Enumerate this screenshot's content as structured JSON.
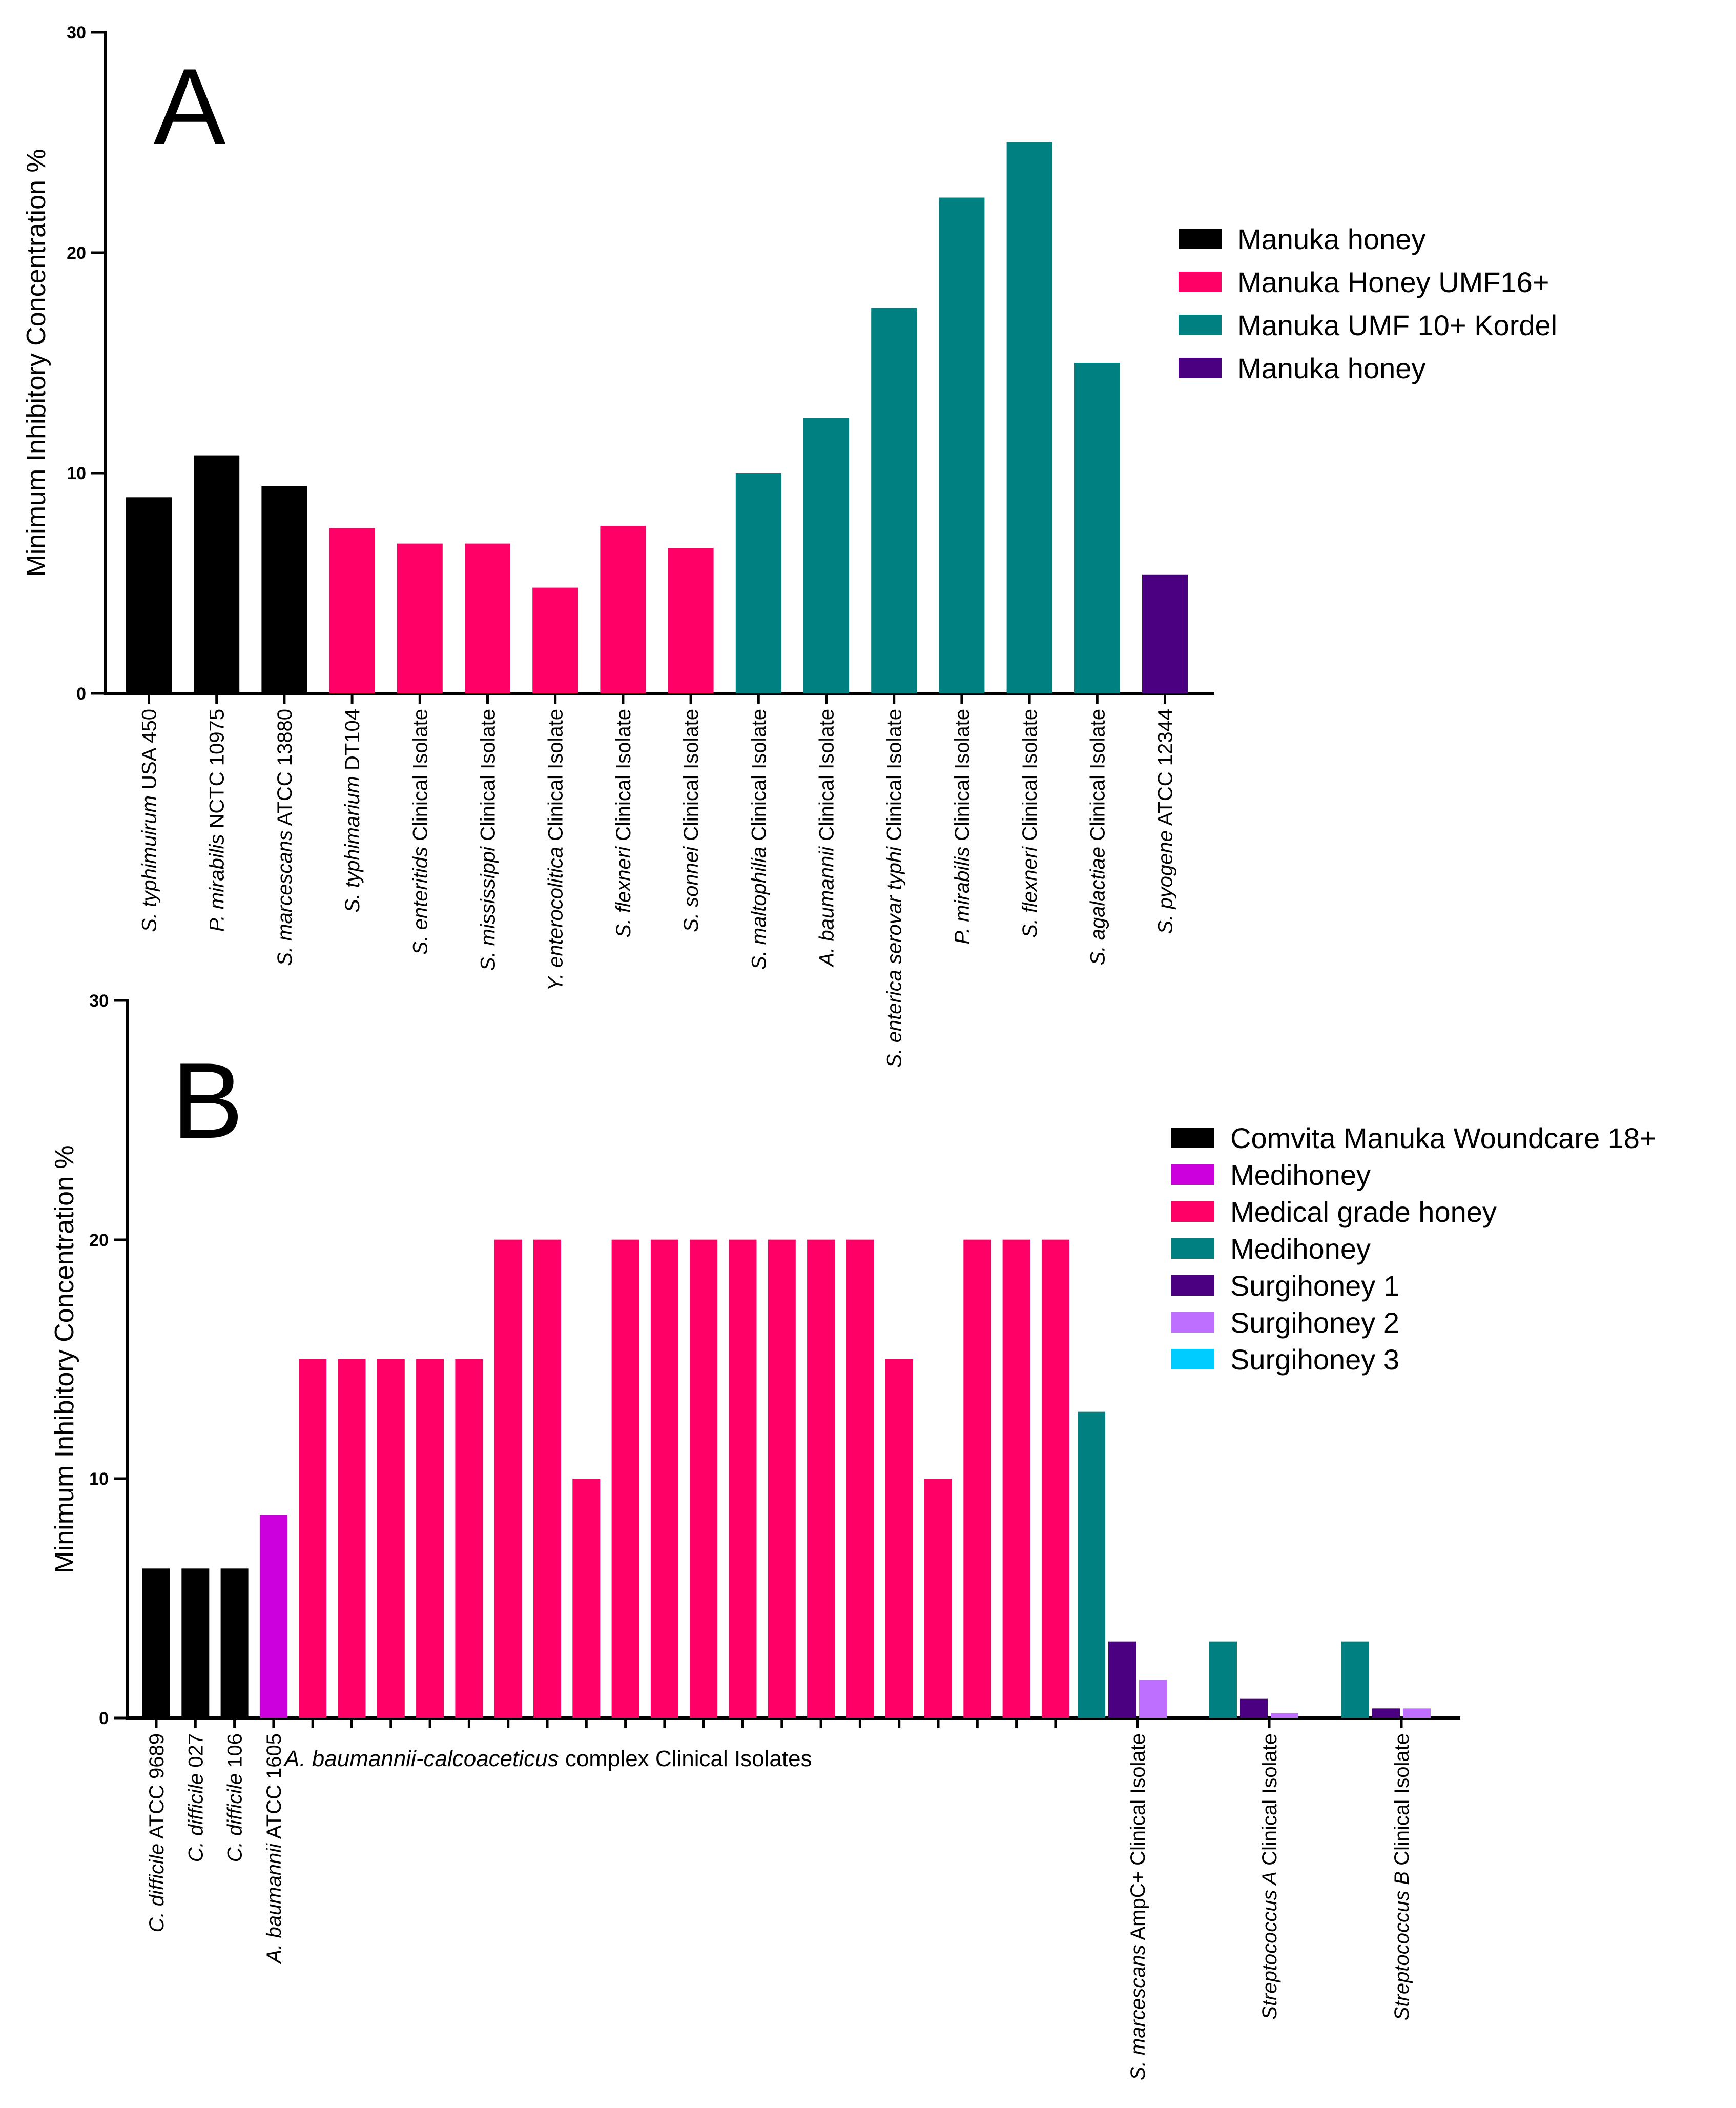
{
  "panels": [
    {
      "letter": "A",
      "ylabel": "Minimum Inhibitory Concentration %",
      "ylim": [
        0,
        30
      ],
      "yticks": [
        "0",
        "10",
        "20",
        "30"
      ],
      "legend": [
        {
          "label": "Manuka honey",
          "color": "#000000"
        },
        {
          "label": "Manuka Honey UMF16+",
          "color": "#ff0066"
        },
        {
          "label": "Manuka UMF 10+ Kordel",
          "color": "#008080"
        },
        {
          "label": "Manuka honey",
          "color": "#4b0082"
        }
      ]
    },
    {
      "letter": "B",
      "ylabel": "Minimum Inhibitory Concentration %",
      "ylim": [
        0,
        30
      ],
      "yticks": [
        "0",
        "10",
        "20",
        "30"
      ],
      "legend": [
        {
          "label": "Comvita Manuka Woundcare 18+",
          "color": "#000000"
        },
        {
          "label": "Medihoney",
          "color": "#cc00dd"
        },
        {
          "label": "Medical grade honey",
          "color": "#ff0066"
        },
        {
          "label": "Medihoney",
          "color": "#008080"
        },
        {
          "label": "Surgihoney 1",
          "color": "#4b0082"
        },
        {
          "label": "Surgihoney 2",
          "color": "#bf6fff"
        },
        {
          "label": "Surgihoney 3",
          "color": "#00ccff"
        }
      ],
      "group_label": {
        "italic": "A. baumannii-calcoaceticus",
        "rest": " complex Clinical Isolates"
      }
    }
  ],
  "chart_data": [
    {
      "type": "bar",
      "title": "A",
      "xlabel": "",
      "ylabel": "Minimum Inhibitory Concentration %",
      "ylim": [
        0,
        30
      ],
      "bars": [
        {
          "italic": "S. typhimuirum",
          "rest": " USA 450",
          "value": 8.9,
          "color": "#000000"
        },
        {
          "italic": "P. mirabilis",
          "rest": " NCTC 10975",
          "value": 10.8,
          "color": "#000000"
        },
        {
          "italic": "S. marcescans",
          "rest": " ATCC 13880",
          "value": 9.4,
          "color": "#000000"
        },
        {
          "italic": "S. typhimarium",
          "rest": " DT104",
          "value": 7.5,
          "color": "#ff0066"
        },
        {
          "italic": "S. enteritids",
          "rest": " Clinical Isolate",
          "value": 6.8,
          "color": "#ff0066"
        },
        {
          "italic": "S. mississippi",
          "rest": " Clinical Isolate",
          "value": 6.8,
          "color": "#ff0066"
        },
        {
          "italic": "Y. enterocolitica",
          "rest": " Clinical Isolate",
          "value": 4.8,
          "color": "#ff0066"
        },
        {
          "italic": "S. flexneri",
          "rest": " Clinical Isolate",
          "value": 7.6,
          "color": "#ff0066"
        },
        {
          "italic": "S. sonnei",
          "rest": " Clinical Isolate",
          "value": 6.6,
          "color": "#ff0066"
        },
        {
          "italic": "S. maltophilia",
          "rest": " Clinical Isolate",
          "value": 10.0,
          "color": "#008080"
        },
        {
          "italic": "A. baumannii",
          "rest": " Clinical Isolate",
          "value": 12.5,
          "color": "#008080"
        },
        {
          "italic": "S. enterica serovar typhi",
          "rest": " Clinical Isolate",
          "value": 17.5,
          "color": "#008080"
        },
        {
          "italic": "P. mirabilis",
          "rest": " Clinical Isolate",
          "value": 22.5,
          "color": "#008080"
        },
        {
          "italic": "S. flexneri",
          "rest": " Clinical Isolate",
          "value": 25.0,
          "color": "#008080"
        },
        {
          "italic": "S. agalactiae",
          "rest": " Clinical Isolate",
          "value": 15.0,
          "color": "#008080"
        },
        {
          "italic": "S. pyogene",
          "rest": " ATCC 12344",
          "value": 5.4,
          "color": "#4b0082"
        }
      ]
    },
    {
      "type": "bar",
      "title": "B",
      "xlabel": "",
      "ylabel": "Minimum Inhibitory Concentration %",
      "ylim": [
        0,
        30
      ],
      "labels": [
        {
          "italic": "C. difficile",
          "rest": " ATCC 9689"
        },
        {
          "italic": "C. difficile",
          "rest": " 027"
        },
        {
          "italic": "C. difficile",
          "rest": " 106"
        },
        {
          "italic": "A. baumannii",
          "rest": " ATCC 1605"
        },
        {
          "italic": "S. marcescans",
          "rest": " AmpC+ Clinical Isolate"
        },
        {
          "italic": "Streptococcus A",
          "rest": " Clinical Isolate"
        },
        {
          "italic": "Streptococcus B",
          "rest": " Clinical Isolate"
        }
      ],
      "bars": [
        {
          "value": 6.25,
          "color": "#000000"
        },
        {
          "value": 6.25,
          "color": "#000000"
        },
        {
          "value": 6.25,
          "color": "#000000"
        },
        {
          "value": 8.5,
          "color": "#cc00dd"
        },
        {
          "value": 15,
          "color": "#ff0066"
        },
        {
          "value": 15,
          "color": "#ff0066"
        },
        {
          "value": 15,
          "color": "#ff0066"
        },
        {
          "value": 15,
          "color": "#ff0066"
        },
        {
          "value": 15,
          "color": "#ff0066"
        },
        {
          "value": 20,
          "color": "#ff0066"
        },
        {
          "value": 20,
          "color": "#ff0066"
        },
        {
          "value": 10,
          "color": "#ff0066"
        },
        {
          "value": 20,
          "color": "#ff0066"
        },
        {
          "value": 20,
          "color": "#ff0066"
        },
        {
          "value": 20,
          "color": "#ff0066"
        },
        {
          "value": 20,
          "color": "#ff0066"
        },
        {
          "value": 20,
          "color": "#ff0066"
        },
        {
          "value": 20,
          "color": "#ff0066"
        },
        {
          "value": 20,
          "color": "#ff0066"
        },
        {
          "value": 15,
          "color": "#ff0066"
        },
        {
          "value": 10,
          "color": "#ff0066"
        },
        {
          "value": 20,
          "color": "#ff0066"
        },
        {
          "value": 20,
          "color": "#ff0066"
        },
        {
          "value": 20,
          "color": "#ff0066"
        },
        {
          "value": 12.8,
          "color": "#008080"
        },
        {
          "value": 3.2,
          "color": "#4b0082"
        },
        {
          "value": 1.6,
          "color": "#bf6fff"
        },
        {
          "value": 3.2,
          "color": "#008080"
        },
        {
          "value": 0.8,
          "color": "#4b0082"
        },
        {
          "value": 0.2,
          "color": "#bf6fff"
        },
        {
          "value": 3.2,
          "color": "#008080"
        },
        {
          "value": 0.4,
          "color": "#4b0082"
        },
        {
          "value": 0.4,
          "color": "#bf6fff"
        }
      ]
    }
  ]
}
